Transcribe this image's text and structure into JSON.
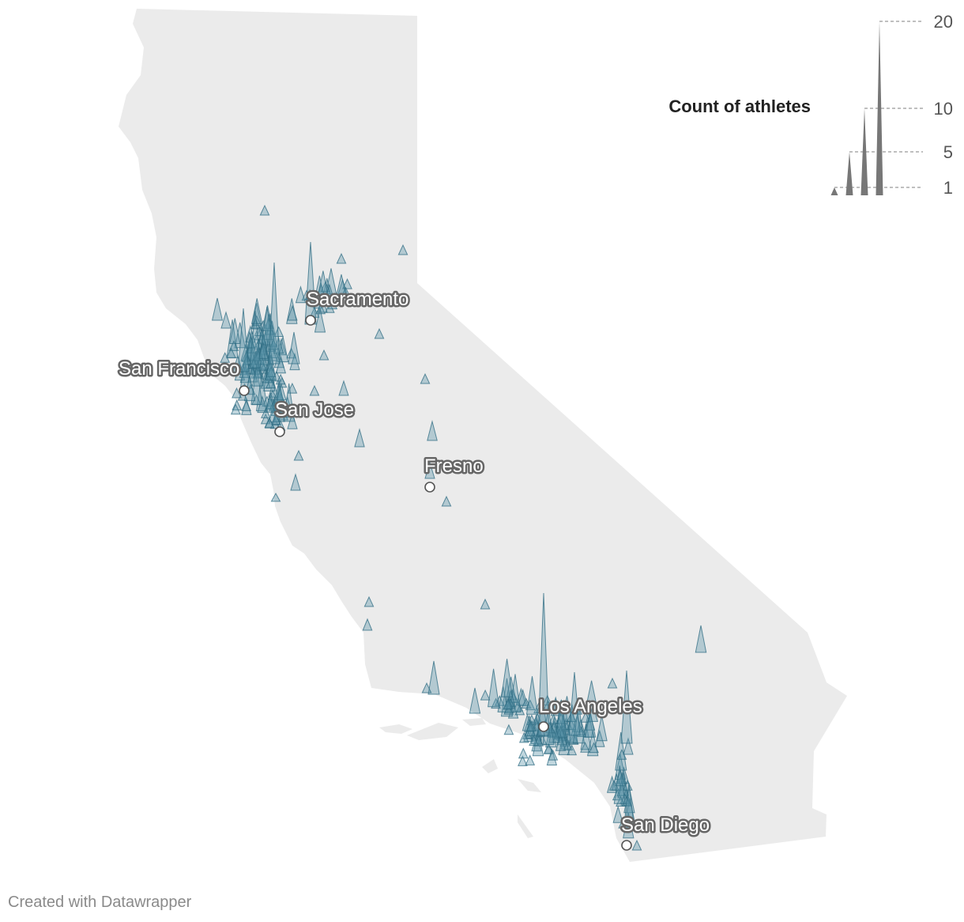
{
  "legend": {
    "title": "Count of athletes",
    "ticks": [
      {
        "label": "20",
        "value": 20
      },
      {
        "label": "10",
        "value": 10
      },
      {
        "label": "5",
        "value": 5
      },
      {
        "label": "1",
        "value": 1
      }
    ]
  },
  "cities": [
    {
      "name": "Sacramento"
    },
    {
      "name": "San Francisco"
    },
    {
      "name": "San Jose"
    },
    {
      "name": "Fresno"
    },
    {
      "name": "Los Angeles"
    },
    {
      "name": "San Diego"
    }
  ],
  "credit": "Created with Datawrapper",
  "colors": {
    "land": "#ebebeb",
    "spike_fill": "#5a93a8",
    "spike_stroke": "#2e6b82",
    "legend_spike": "#777777"
  }
}
